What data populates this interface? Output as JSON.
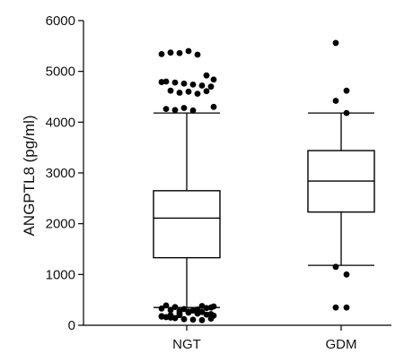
{
  "chart_data": {
    "type": "box",
    "title": "",
    "xlabel": "",
    "ylabel": "ANGPTL8 (pg/ml)",
    "ylim": [
      0,
      6000
    ],
    "yticks": [
      0,
      1000,
      2000,
      3000,
      4000,
      5000,
      6000
    ],
    "grid": false,
    "categories": [
      "NGT",
      "GDM"
    ],
    "boxes": [
      {
        "group": "NGT",
        "whisker_low": 350,
        "q1": 1330,
        "median": 2110,
        "q3": 2650,
        "whisker_high": 4180,
        "outliers": [
          5340,
          5370,
          5360,
          5400,
          5330,
          4920,
          4840,
          4800,
          4780,
          4760,
          4740,
          4720,
          4700,
          4790,
          4620,
          4580,
          4600,
          4560,
          4610,
          4300,
          4260,
          4240,
          4280,
          4230,
          380,
          350,
          330,
          300,
          280,
          250,
          230,
          210,
          190,
          160,
          140,
          120,
          110,
          100,
          130,
          170,
          200,
          240,
          270,
          310,
          340,
          370,
          390,
          360,
          320,
          290,
          260,
          220,
          180,
          150,
          200,
          250,
          300
        ]
      },
      {
        "group": "GDM",
        "whisker_low": 1180,
        "q1": 2230,
        "median": 2840,
        "q3": 3440,
        "whisker_high": 4180,
        "outliers": [
          5560,
          4620,
          4420,
          4180,
          1150,
          1000,
          350,
          350
        ]
      }
    ]
  }
}
